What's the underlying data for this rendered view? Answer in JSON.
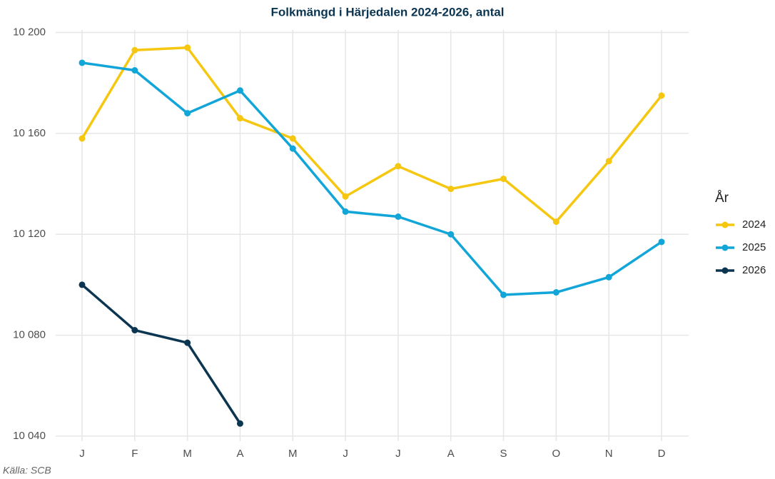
{
  "chart_data": {
    "type": "line",
    "title": "Folkmängd i Härjedalen 2024-2026, antal",
    "caption": "Källa: SCB",
    "legend_title": "År",
    "legend_position": "right",
    "grid": true,
    "categories": [
      "J",
      "F",
      "M",
      "A",
      "M",
      "J",
      "J",
      "A",
      "S",
      "O",
      "N",
      "D"
    ],
    "series": [
      {
        "name": "2024",
        "color": "#f5c710",
        "values": [
          10158,
          10193,
          10194,
          10166,
          10158,
          10135,
          10147,
          10138,
          10142,
          10125,
          10149,
          10175
        ]
      },
      {
        "name": "2025",
        "color": "#12a5d8",
        "values": [
          10188,
          10185,
          10168,
          10177,
          10154,
          10129,
          10127,
          10120,
          10096,
          10097,
          10103,
          10117
        ]
      },
      {
        "name": "2026",
        "color": "#0b3550",
        "values": [
          10100,
          10082,
          10077,
          10045,
          null,
          null,
          null,
          null,
          null,
          null,
          null,
          null
        ]
      }
    ],
    "ylim": [
      10038,
      10201
    ],
    "yticks": [
      {
        "value": 10040,
        "label": "10 040"
      },
      {
        "value": 10080,
        "label": "10 080"
      },
      {
        "value": 10120,
        "label": "10 120"
      },
      {
        "value": 10160,
        "label": "10 160"
      },
      {
        "value": 10200,
        "label": "10 200"
      }
    ]
  }
}
